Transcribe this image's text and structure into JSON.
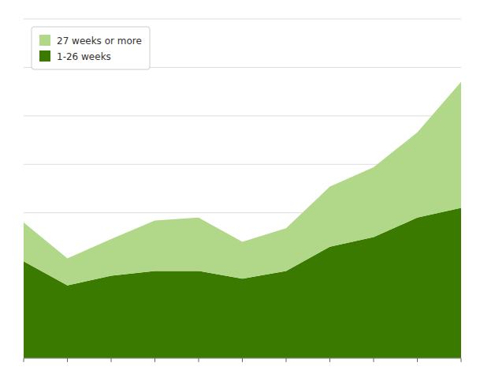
{
  "chart_data": {
    "type": "area",
    "stacked": true,
    "x": [
      0,
      1,
      2,
      3,
      4,
      5,
      6,
      7,
      8,
      9,
      10
    ],
    "series": [
      {
        "name": "1-26 weeks",
        "color": "#3a7a00",
        "values": [
          100,
          75,
          85,
          90,
          90,
          82,
          90,
          115,
          125,
          145,
          155
        ]
      },
      {
        "name": "27 weeks or more",
        "color": "#b0d888",
        "values": [
          40,
          28,
          38,
          52,
          55,
          38,
          44,
          62,
          72,
          88,
          130
        ]
      }
    ],
    "xlim": [
      0,
      10
    ],
    "ylim": [
      0,
      350
    ],
    "xticks": [
      0,
      1,
      2,
      3,
      4,
      5,
      6,
      7,
      8,
      9,
      10
    ],
    "yticks": [
      0,
      50,
      100,
      150,
      200,
      250,
      300,
      350
    ],
    "grid": "y",
    "legend": "upper left",
    "tick_labels": false
  }
}
